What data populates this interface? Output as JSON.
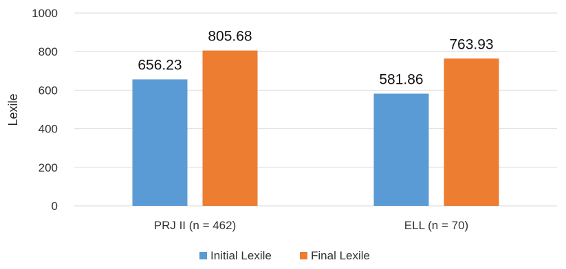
{
  "chart_data": {
    "type": "bar",
    "title": "",
    "xlabel": "",
    "ylabel": "Lexile",
    "ylim": [
      0,
      1000
    ],
    "yticks": [
      0,
      200,
      400,
      600,
      800,
      1000
    ],
    "grid": true,
    "legend_position": "bottom",
    "categories": [
      "PRJ II (n = 462)",
      "ELL (n = 70)"
    ],
    "series": [
      {
        "name": "Initial Lexile",
        "color": "#5b9bd5",
        "values": [
          656.23,
          581.86
        ],
        "labels": [
          "656.23",
          "581.86"
        ]
      },
      {
        "name": "Final Lexile",
        "color": "#ed7d31",
        "values": [
          805.68,
          763.93
        ],
        "labels": [
          "805.68",
          "763.93"
        ]
      }
    ]
  }
}
